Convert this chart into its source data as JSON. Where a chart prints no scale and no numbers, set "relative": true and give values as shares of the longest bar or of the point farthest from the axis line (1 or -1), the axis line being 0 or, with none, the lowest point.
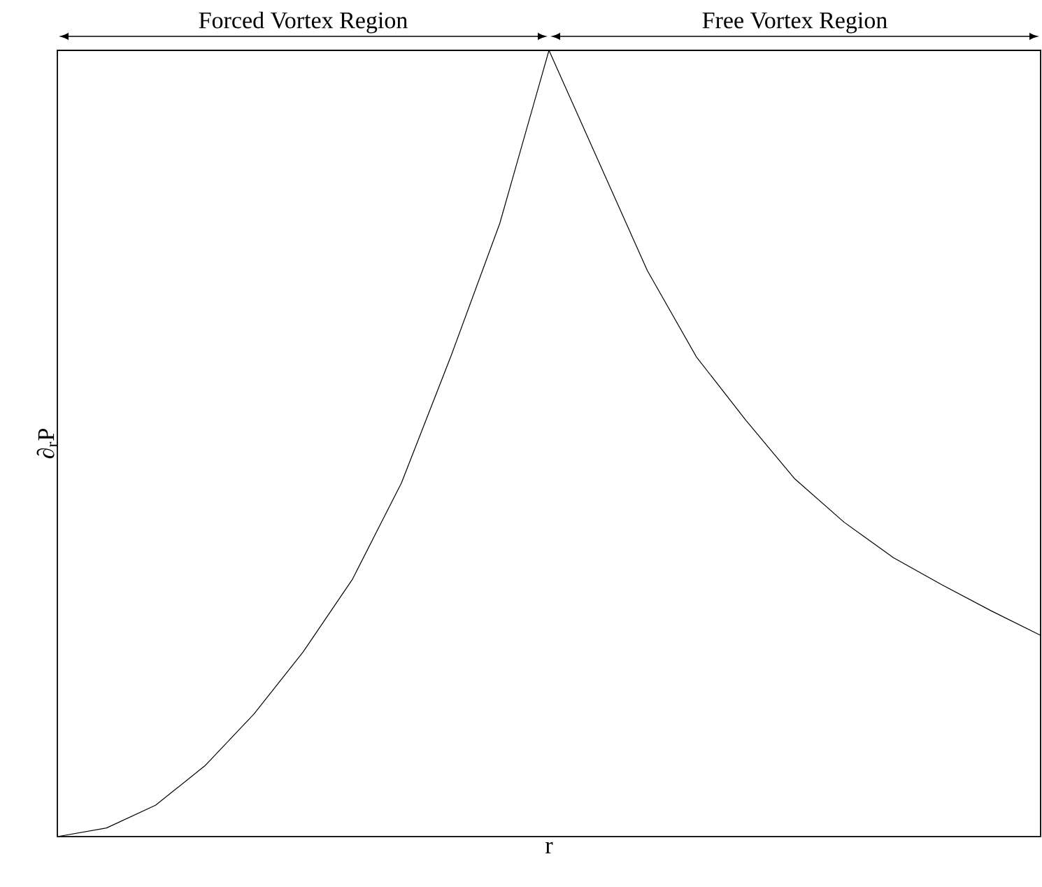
{
  "chart_data": {
    "type": "line",
    "relative": true,
    "xlabel": "r",
    "ylabel": "∂$_{r}$P",
    "annotations": [
      "Forced Vortex Region",
      "Free Vortex Region"
    ],
    "categories": [
      null,
      null,
      null,
      null,
      null,
      null,
      null,
      null,
      null,
      null,
      null,
      null,
      null,
      null,
      null,
      null,
      null,
      null,
      null,
      null,
      null
    ],
    "series": [
      {
        "color": "#000000",
        "values": [
          0,
          0.011,
          0.04,
          0.09,
          0.156,
          0.235,
          0.327,
          0.45,
          0.61,
          0.78,
          1,
          0.86,
          0.72,
          0.61,
          0.53,
          0.455,
          0.4,
          0.355,
          0.32,
          0.287,
          0.256
        ]
      }
    ]
  }
}
